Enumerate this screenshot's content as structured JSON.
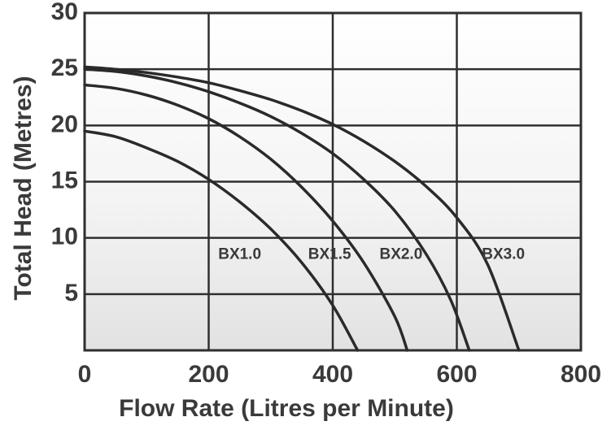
{
  "chart_data": {
    "type": "line",
    "xlabel": "Flow Rate (Litres per Minute)",
    "ylabel": "Total Head (Metres)",
    "xlim": [
      0,
      800
    ],
    "ylim": [
      0,
      30
    ],
    "x_ticks": [
      0,
      200,
      400,
      600,
      800
    ],
    "y_ticks": [
      5,
      10,
      15,
      20,
      25,
      30
    ],
    "grid": true,
    "series": [
      {
        "name": "BX1.0",
        "label_at": [
          250,
          8.5
        ],
        "points": [
          [
            0,
            19.5
          ],
          [
            50,
            19.0
          ],
          [
            100,
            18.0
          ],
          [
            150,
            16.8
          ],
          [
            200,
            15.2
          ],
          [
            250,
            13.2
          ],
          [
            300,
            10.8
          ],
          [
            350,
            7.8
          ],
          [
            400,
            4.0
          ],
          [
            440,
            0
          ]
        ]
      },
      {
        "name": "BX1.5",
        "label_at": [
          395,
          8.5
        ],
        "points": [
          [
            0,
            23.6
          ],
          [
            50,
            23.3
          ],
          [
            100,
            22.7
          ],
          [
            150,
            21.8
          ],
          [
            200,
            20.6
          ],
          [
            250,
            19.0
          ],
          [
            300,
            17.0
          ],
          [
            350,
            14.5
          ],
          [
            400,
            11.5
          ],
          [
            450,
            7.8
          ],
          [
            500,
            3.0
          ],
          [
            520,
            0
          ]
        ]
      },
      {
        "name": "BX2.0",
        "label_at": [
          510,
          8.5
        ],
        "points": [
          [
            0,
            25.0
          ],
          [
            50,
            24.8
          ],
          [
            100,
            24.4
          ],
          [
            150,
            23.8
          ],
          [
            200,
            23.0
          ],
          [
            250,
            22.0
          ],
          [
            300,
            20.8
          ],
          [
            350,
            19.3
          ],
          [
            400,
            17.5
          ],
          [
            450,
            15.2
          ],
          [
            500,
            12.4
          ],
          [
            550,
            8.6
          ],
          [
            590,
            4.5
          ],
          [
            620,
            0
          ]
        ]
      },
      {
        "name": "BX3.0",
        "label_at": [
          675,
          8.5
        ],
        "points": [
          [
            0,
            25.2
          ],
          [
            50,
            25.0
          ],
          [
            100,
            24.7
          ],
          [
            150,
            24.3
          ],
          [
            200,
            23.8
          ],
          [
            250,
            23.1
          ],
          [
            300,
            22.3
          ],
          [
            350,
            21.3
          ],
          [
            400,
            20.1
          ],
          [
            450,
            18.6
          ],
          [
            500,
            16.8
          ],
          [
            550,
            14.6
          ],
          [
            600,
            11.8
          ],
          [
            650,
            7.6
          ],
          [
            700,
            0
          ]
        ]
      }
    ]
  }
}
